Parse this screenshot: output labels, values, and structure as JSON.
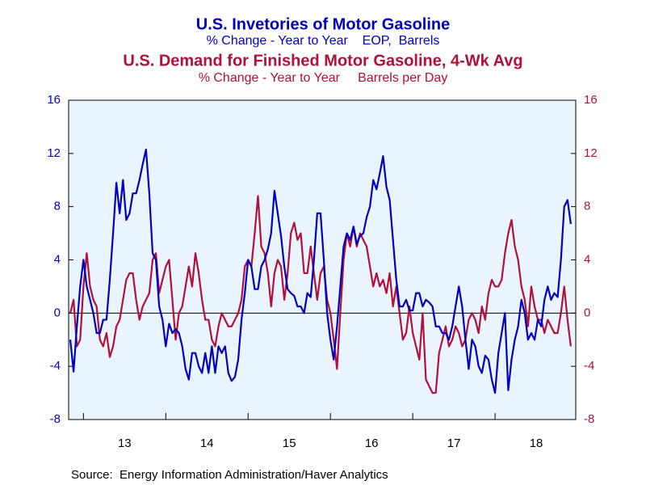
{
  "chart_data": {
    "type": "line",
    "series": [
      {
        "name": "U.S. Invetories of Motor Gasoline",
        "subtitle": "% Change - Year to Year    EOP,  Barrels",
        "color": "#0000c0",
        "axis": "y",
        "values": [
          -2,
          -4.4,
          -1,
          2,
          4,
          2,
          1,
          0,
          -1.5,
          -1.5,
          -0.5,
          -0.5,
          2.5,
          6,
          9.8,
          7.5,
          10,
          7,
          7.5,
          9,
          9,
          10,
          11.2,
          12.3,
          9,
          4.5,
          4,
          0.5,
          -0.5,
          -2.5,
          -0.8,
          -1.5,
          -1.2,
          -1.5,
          -2.5,
          -4.2,
          -5,
          -3,
          -3,
          -4,
          -4.5,
          -3,
          -4.5,
          -2.5,
          -4.5,
          -2.5,
          -3,
          -2.5,
          -4.5,
          -5.1,
          -4.8,
          -3.5,
          -0.5,
          1.5,
          4,
          3.5,
          1.8,
          1.8,
          3.5,
          4,
          4.8,
          6,
          9.2,
          7.5,
          5.8,
          3.5,
          1.8,
          1.5,
          1.3,
          0.5,
          0.5,
          0,
          1.5,
          1.2,
          4,
          7.5,
          7.5,
          4,
          0,
          -2,
          -3.5,
          -1,
          2,
          5,
          6,
          5.5,
          6.5,
          5.2,
          5.8,
          6,
          7.2,
          8,
          10,
          9.3,
          10.5,
          11.8,
          9.5,
          8.5,
          5.5,
          2.5,
          0.5,
          0.5,
          1,
          0.2,
          0.2,
          1.5,
          1.5,
          0.5,
          1,
          0.8,
          0.5,
          -1,
          -1,
          -1.5,
          -1.5,
          -2,
          -1,
          0.5,
          2,
          0.5,
          -2,
          -4.2,
          -2,
          -2.5,
          -4,
          -4.5,
          -3.2,
          -3.5,
          -5,
          -6,
          -3,
          -1.5,
          0,
          -5.8,
          -3.5,
          -2,
          -1,
          1,
          0,
          -2,
          -1.5,
          -2,
          -0.5,
          -1,
          1,
          2,
          1,
          1.5,
          1.2,
          4,
          8,
          8.5,
          6.7
        ]
      },
      {
        "name": "U.S. Demand for Finished Motor Gasoline, 4-Wk Avg",
        "subtitle": "% Change - Year to Year     Barrels per Day",
        "color": "#b0103a",
        "axis": "y2",
        "values": [
          0,
          1,
          -2.5,
          -2,
          2,
          4.5,
          2,
          1,
          0.5,
          -2,
          -2.5,
          -1.5,
          -3.3,
          -2.5,
          -1,
          -0.5,
          1,
          2.5,
          3,
          3,
          1,
          -0.5,
          0.5,
          1,
          1.5,
          4,
          4.5,
          1.5,
          2.5,
          3.5,
          4,
          1,
          -2,
          0,
          0.5,
          2,
          3.5,
          2,
          4.5,
          3,
          1,
          -0.5,
          -0.5,
          -2,
          -2.5,
          -1,
          0,
          -0.5,
          -1,
          -1,
          -0.5,
          0,
          1,
          3.5,
          4,
          3.5,
          6,
          8.8,
          5,
          4.5,
          3,
          0.5,
          3,
          4,
          3.5,
          1,
          3,
          6,
          6.8,
          5.5,
          6,
          3,
          3,
          5,
          3,
          1,
          3,
          3.5,
          1,
          0,
          -2,
          -4.2,
          0,
          4,
          6,
          5,
          6.5,
          5,
          6,
          5.5,
          5,
          3.5,
          2,
          3,
          2,
          2.5,
          1.5,
          3,
          0.5,
          2,
          0,
          -2,
          -1.5,
          0.5,
          -1.5,
          -2.5,
          -3.5,
          0,
          -5,
          -5.5,
          -6,
          -6,
          -3,
          -2,
          -1,
          -2.5,
          -2,
          -1,
          -1.5,
          -2.5,
          -2,
          -0.5,
          0,
          -0.5,
          -1.5,
          0.5,
          -0.5,
          1.5,
          2.5,
          2,
          2,
          2.5,
          4.5,
          6,
          7,
          5,
          4,
          2,
          1,
          -1,
          2,
          0.5,
          -0.5,
          -0.5,
          -1.5,
          -0.5,
          -1,
          -1.5,
          -1.5,
          0,
          2,
          -0.5,
          -2.5
        ]
      }
    ],
    "x": [
      12.84,
      12.88,
      12.92,
      12.96,
      13,
      13.04,
      13.08,
      13.12,
      13.16,
      13.2,
      13.24,
      13.28,
      13.32,
      13.36,
      13.4,
      13.44,
      13.48,
      13.52,
      13.56,
      13.6,
      13.64,
      13.68,
      13.72,
      13.76,
      13.8,
      13.84,
      13.88,
      13.92,
      13.96,
      14,
      14.04,
      14.08,
      14.12,
      14.16,
      14.2,
      14.24,
      14.28,
      14.32,
      14.36,
      14.4,
      14.44,
      14.48,
      14.52,
      14.56,
      14.6,
      14.64,
      14.68,
      14.72,
      14.76,
      14.8,
      14.84,
      14.88,
      14.92,
      14.96,
      15,
      15.04,
      15.08,
      15.12,
      15.16,
      15.2,
      15.24,
      15.28,
      15.32,
      15.36,
      15.4,
      15.44,
      15.48,
      15.52,
      15.56,
      15.6,
      15.64,
      15.68,
      15.72,
      15.76,
      15.8,
      15.84,
      15.88,
      15.92,
      15.96,
      16,
      16.04,
      16.08,
      16.12,
      16.16,
      16.2,
      16.24,
      16.28,
      16.32,
      16.36,
      16.4,
      16.44,
      16.48,
      16.52,
      16.56,
      16.6,
      16.64,
      16.68,
      16.72,
      16.76,
      16.8,
      16.84,
      16.88,
      16.92,
      16.96,
      17,
      17.04,
      17.08,
      17.12,
      17.16,
      17.2,
      17.24,
      17.28,
      17.32,
      17.36,
      17.4,
      17.44,
      17.48,
      17.52,
      17.56,
      17.6,
      17.64,
      17.68,
      17.72,
      17.76,
      17.8,
      17.84,
      17.88,
      17.92,
      17.96,
      18,
      18.04,
      18.08,
      18.12,
      18.16,
      18.2,
      18.24,
      18.28,
      18.32,
      18.36,
      18.4,
      18.44,
      18.48,
      18.52,
      18.56,
      18.6,
      18.64,
      18.68,
      18.72,
      18.76,
      18.8,
      18.84,
      18.88,
      18.92
    ],
    "xlim": [
      12.82,
      18.98
    ],
    "xticks": [
      13,
      14,
      15,
      16,
      17,
      18
    ],
    "ylim": [
      -8,
      16
    ],
    "yticks": [
      -8,
      -4,
      0,
      4,
      8,
      12,
      16
    ],
    "y2lim": [
      -8,
      16
    ],
    "y2ticks": [
      -8,
      -4,
      0,
      4,
      8,
      12,
      16
    ],
    "zero_line": true,
    "source": "Source:  Energy Information Administration/Haver Analytics"
  }
}
